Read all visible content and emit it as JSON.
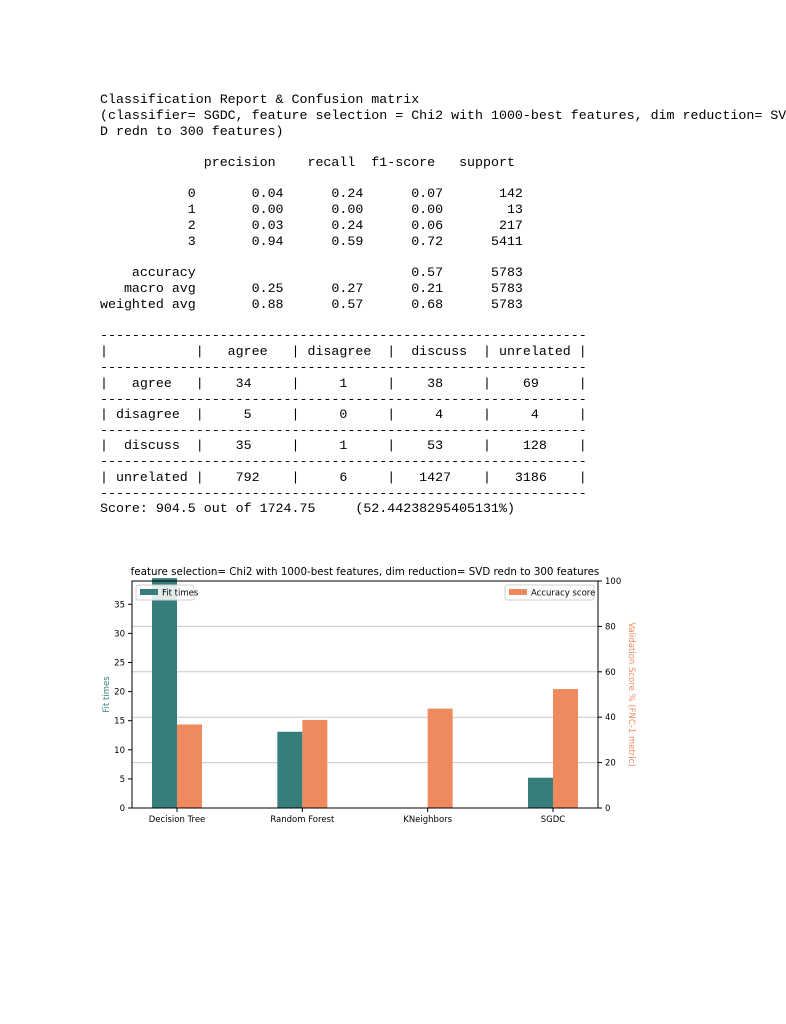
{
  "report": {
    "header_lines": [
      "Classification Report & Confusion matrix",
      "(classifier= SGDC, feature selection = Chi2 with 1000-best features, dim reduction= SV",
      "D redn to 300 features)"
    ],
    "metrics_header": "             precision    recall  f1-score   support",
    "metric_rows": [
      "           0       0.04      0.24      0.07       142",
      "           1       0.00      0.00      0.00        13",
      "           2       0.03      0.24      0.06       217",
      "           3       0.94      0.59      0.72      5411"
    ],
    "summary_rows": [
      "    accuracy                           0.57      5783",
      "   macro avg       0.25      0.27      0.21      5783",
      "weighted avg       0.88      0.57      0.68      5783"
    ]
  },
  "confusion": {
    "separator": "-------------------------------------------------------------",
    "header_row": "|           |   agree   | disagree  |  discuss  | unrelated |",
    "rows": [
      "|   agree   |    34     |     1     |    38     |    69     |",
      "| disagree  |     5     |     0     |     4     |     4     |",
      "|  discuss  |    35     |     1     |    53     |    128    |",
      "| unrelated |    792    |     6     |   1427    |   3186    |"
    ],
    "score_line": "Score: 904.5 out of 1724.75     (52.44238295405131%)"
  },
  "chart_data": {
    "type": "bar",
    "title": "feature selection= Chi2 with 1000-best features, dim reduction= SVD redn to 300 features",
    "categories": [
      "Decision Tree",
      "Random Forest",
      "KNeighbors",
      "SGDC"
    ],
    "series": [
      {
        "name": "Fit times",
        "axis": "left",
        "color": "#367e7b",
        "values": [
          39.5,
          13.1,
          0.05,
          5.2
        ]
      },
      {
        "name": "Accuracy score",
        "axis": "right",
        "color": "#ef8a5f",
        "values": [
          36.8,
          38.8,
          43.8,
          52.4
        ]
      }
    ],
    "ylabel_left": "Fit times",
    "ylabel_right": "Validation Score % (FNC-1 metric)",
    "ylim_left": [
      0,
      39
    ],
    "ylim_right": [
      0,
      100
    ],
    "yticks_left": [
      0,
      5,
      10,
      15,
      20,
      25,
      30,
      35
    ],
    "yticks_right": [
      0,
      20,
      40,
      60,
      80,
      100
    ],
    "grid": true,
    "legend": {
      "left_series": "upper-left",
      "right_series": "upper-right"
    },
    "left_axis_color": "#367e7b",
    "right_axis_color": "#ef8a5f"
  }
}
